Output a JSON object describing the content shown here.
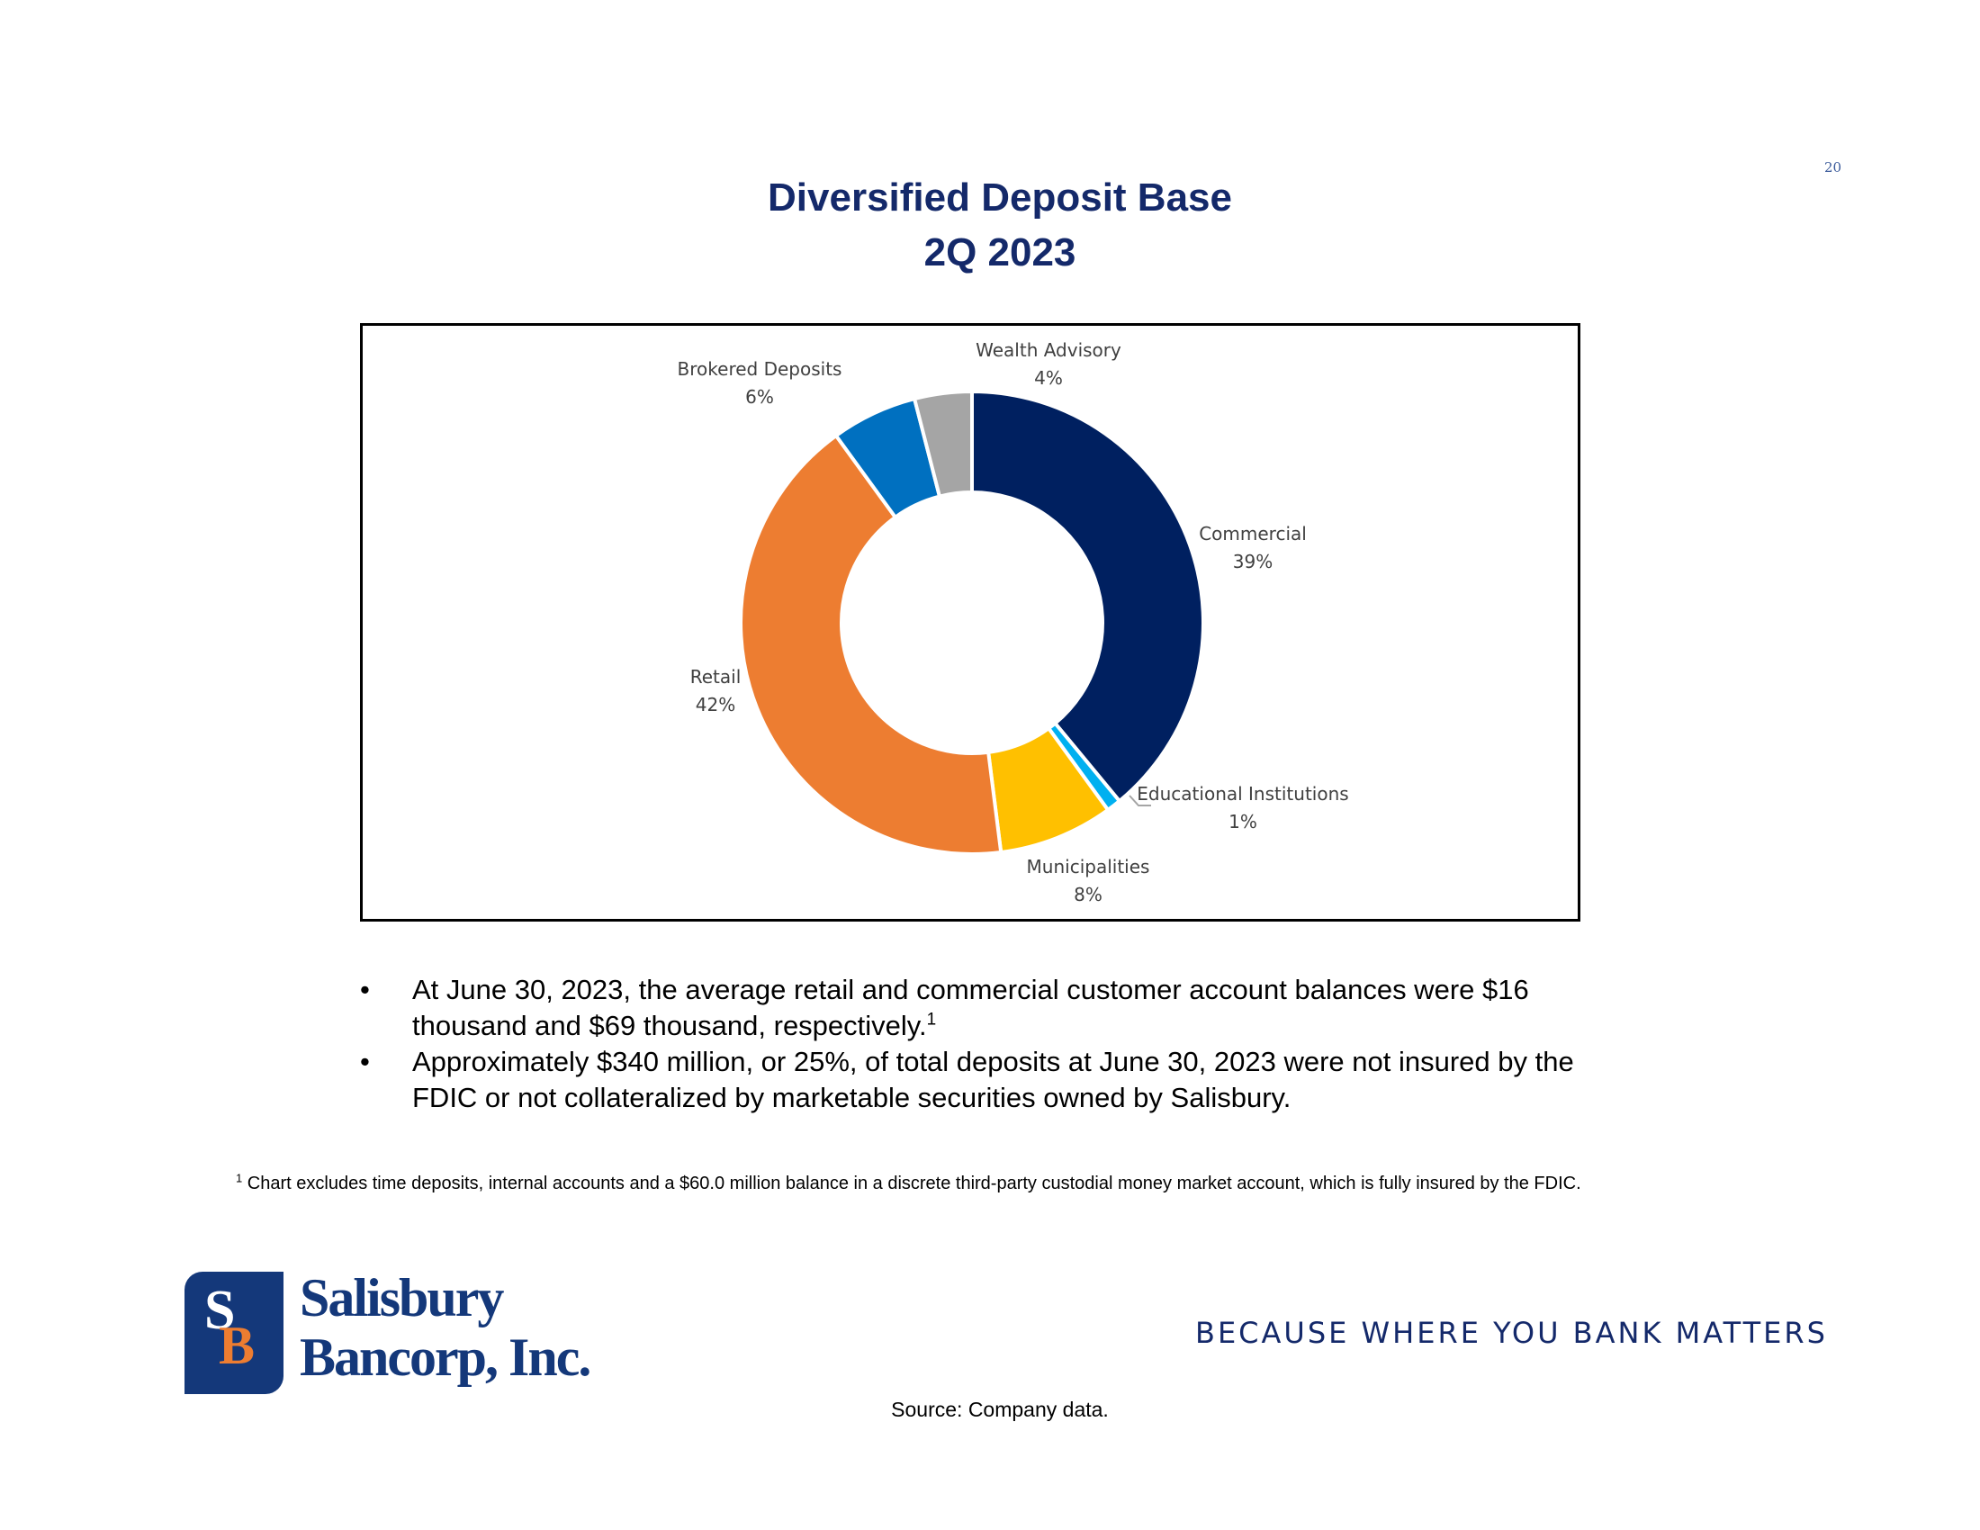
{
  "page_number": "20",
  "title_line1": "Diversified Deposit Base",
  "title_line2": "2Q 2023",
  "chart_data": {
    "type": "pie",
    "subtype": "donut",
    "title": "Diversified Deposit Base 2Q 2023",
    "unit": "%",
    "slices": [
      {
        "name": "Commercial",
        "value": 39,
        "label": "39%",
        "color": "#002060"
      },
      {
        "name": "Educational Institutions",
        "value": 1,
        "label": "1%",
        "color": "#00B0F0"
      },
      {
        "name": "Municipalities",
        "value": 8,
        "label": "8%",
        "color": "#FFC000"
      },
      {
        "name": "Retail",
        "value": 42,
        "label": "42%",
        "color": "#ED7D31"
      },
      {
        "name": "Brokered Deposits",
        "value": 6,
        "label": "6%",
        "color": "#0070C0"
      },
      {
        "name": "Wealth Advisory",
        "value": 4,
        "label": "4%",
        "color": "#A5A5A5"
      }
    ]
  },
  "bullets": [
    {
      "marker": "•",
      "text": "At June 30, 2023, the average retail and commercial customer account balances were $16 thousand and $69 thousand, respectively.",
      "sup": "1"
    },
    {
      "marker": "•",
      "text": "Approximately $340 million, or 25%, of total deposits at June 30, 2023 were not insured by the FDIC or not collateralized by marketable securities owned by Salisbury.",
      "sup": ""
    }
  ],
  "footnote": {
    "sup": "1",
    "text": " Chart excludes time deposits, internal accounts and a $60.0 million balance in a discrete third-party custodial money market account, which is fully insured by the FDIC."
  },
  "logo": {
    "mark_s": "S",
    "mark_b": "B",
    "line1": "Salisbury",
    "line2": "Bancorp, Inc."
  },
  "tagline": "BECAUSE WHERE YOU BANK MATTERS",
  "source": "Source: Company data."
}
